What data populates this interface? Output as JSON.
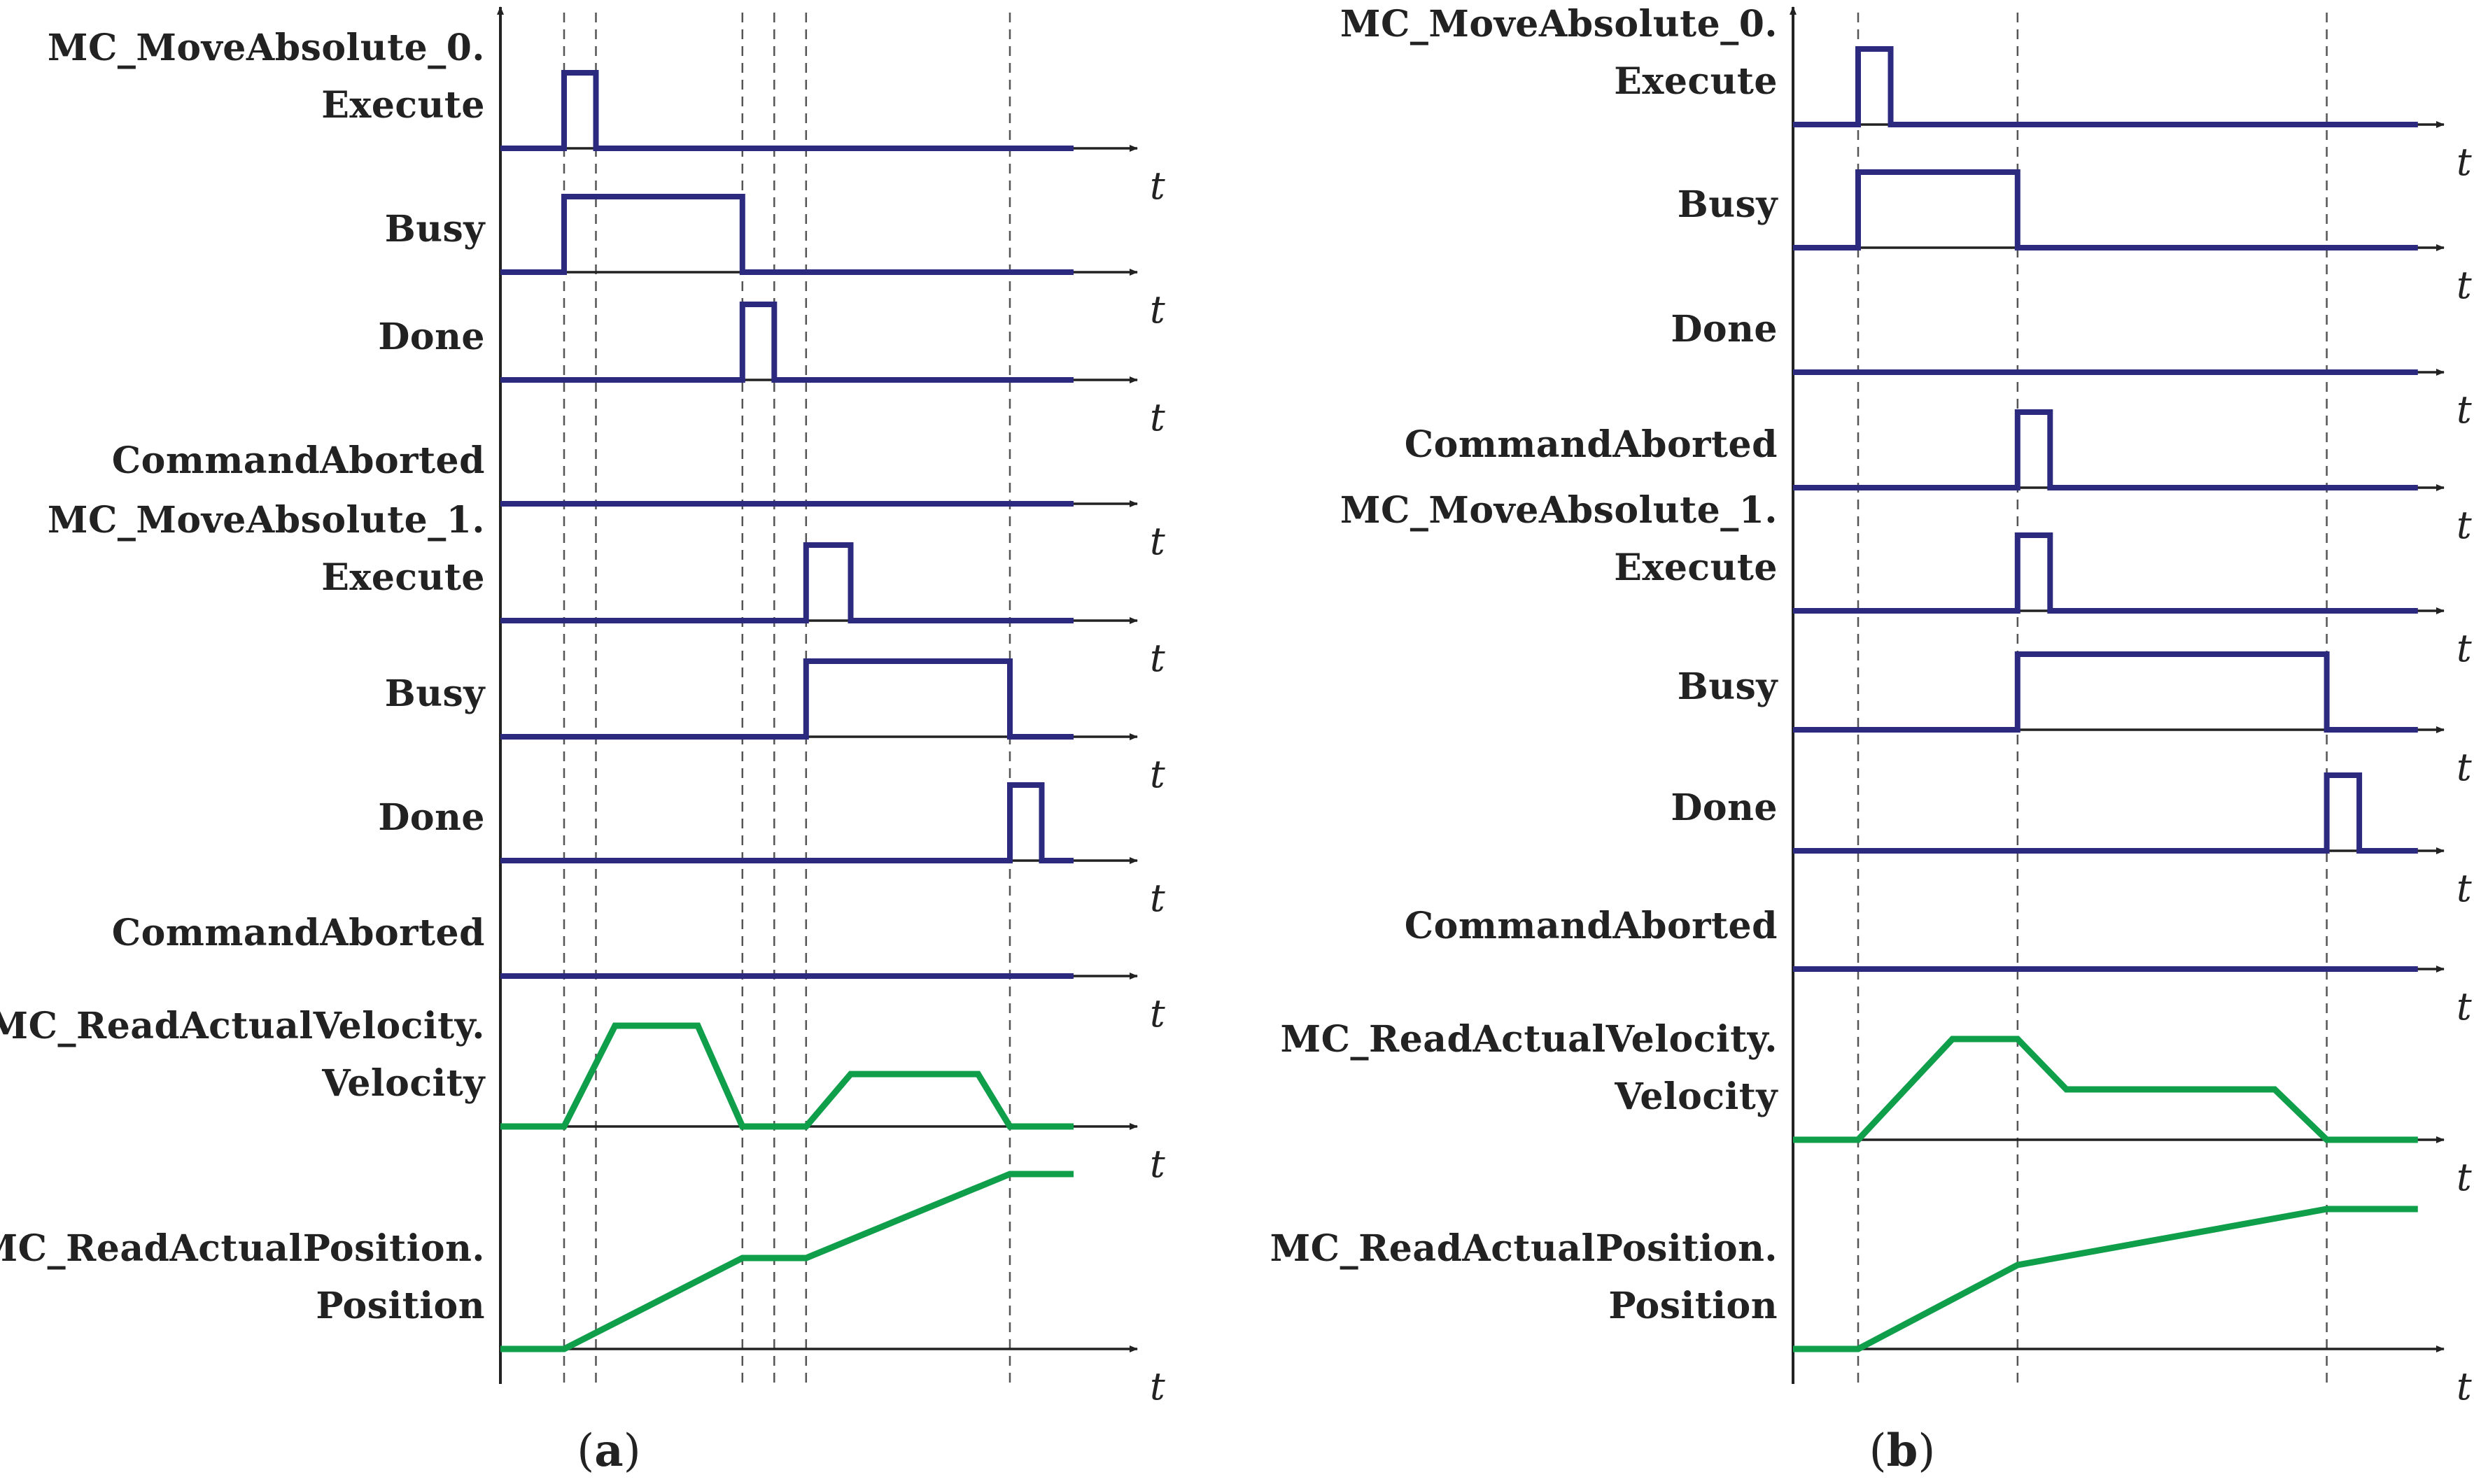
{
  "colors": {
    "digital": "#2b2a7e",
    "analog": "#0f9f4a",
    "axis": "#222222",
    "guide": "#555555"
  },
  "time_axis_symbol": "t",
  "panels": [
    {
      "caption_open": "(",
      "caption_letter": "a",
      "caption_close": ")",
      "signals": [
        {
          "label_lines": [
            "MC_MoveAbsolute_0.",
            "Execute"
          ],
          "kind": "digital",
          "points": [
            [
              0,
              0
            ],
            [
              0.1,
              0
            ],
            [
              0.1,
              1
            ],
            [
              0.15,
              1
            ],
            [
              0.15,
              0
            ],
            [
              0.9,
              0
            ]
          ]
        },
        {
          "label_lines": [
            "Busy"
          ],
          "kind": "digital",
          "points": [
            [
              0,
              0
            ],
            [
              0.1,
              0
            ],
            [
              0.1,
              1
            ],
            [
              0.38,
              1
            ],
            [
              0.38,
              0
            ],
            [
              0.9,
              0
            ]
          ]
        },
        {
          "label_lines": [
            "Done"
          ],
          "kind": "digital",
          "points": [
            [
              0,
              0
            ],
            [
              0.38,
              0
            ],
            [
              0.38,
              1
            ],
            [
              0.43,
              1
            ],
            [
              0.43,
              0
            ],
            [
              0.9,
              0
            ]
          ]
        },
        {
          "label_lines": [
            "CommandAborted"
          ],
          "kind": "digital",
          "points": [
            [
              0,
              0
            ],
            [
              0.9,
              0
            ]
          ]
        },
        {
          "label_lines": [
            "MC_MoveAbsolute_1.",
            "Execute"
          ],
          "kind": "digital",
          "points": [
            [
              0,
              0
            ],
            [
              0.48,
              0
            ],
            [
              0.48,
              1
            ],
            [
              0.55,
              1
            ],
            [
              0.55,
              0
            ],
            [
              0.9,
              0
            ]
          ]
        },
        {
          "label_lines": [
            "Busy"
          ],
          "kind": "digital",
          "points": [
            [
              0,
              0
            ],
            [
              0.48,
              0
            ],
            [
              0.48,
              1
            ],
            [
              0.8,
              1
            ],
            [
              0.8,
              0
            ],
            [
              0.9,
              0
            ]
          ]
        },
        {
          "label_lines": [
            "Done"
          ],
          "kind": "digital",
          "points": [
            [
              0,
              0
            ],
            [
              0.8,
              0
            ],
            [
              0.8,
              1
            ],
            [
              0.85,
              1
            ],
            [
              0.85,
              0
            ],
            [
              0.9,
              0
            ]
          ]
        },
        {
          "label_lines": [
            "CommandAborted"
          ],
          "kind": "digital",
          "points": [
            [
              0,
              0
            ],
            [
              0.9,
              0
            ]
          ]
        },
        {
          "label_lines": [
            "MC_ReadActualVelocity.",
            "Velocity"
          ],
          "kind": "analog",
          "points": [
            [
              0,
              0
            ],
            [
              0.1,
              0
            ],
            [
              0.18,
              1
            ],
            [
              0.31,
              1
            ],
            [
              0.38,
              0
            ],
            [
              0.48,
              0
            ],
            [
              0.55,
              0.52
            ],
            [
              0.75,
              0.52
            ],
            [
              0.8,
              0
            ],
            [
              0.9,
              0
            ]
          ]
        },
        {
          "label_lines": [
            "MC_ReadActualPosition.",
            "Position"
          ],
          "kind": "analog",
          "points": [
            [
              0,
              0
            ],
            [
              0.1,
              0
            ],
            [
              0.38,
              0.52
            ],
            [
              0.48,
              0.52
            ],
            [
              0.8,
              1
            ],
            [
              0.9,
              1
            ]
          ]
        }
      ]
    },
    {
      "caption_open": "(",
      "caption_letter": "b",
      "caption_close": ")",
      "signals": [
        {
          "label_lines": [
            "MC_MoveAbsolute_0.",
            "Execute"
          ],
          "kind": "digital",
          "points": [
            [
              0,
              0
            ],
            [
              0.1,
              0
            ],
            [
              0.1,
              1
            ],
            [
              0.15,
              1
            ],
            [
              0.15,
              0
            ],
            [
              0.96,
              0
            ]
          ]
        },
        {
          "label_lines": [
            "Busy"
          ],
          "kind": "digital",
          "points": [
            [
              0,
              0
            ],
            [
              0.1,
              0
            ],
            [
              0.1,
              1
            ],
            [
              0.345,
              1
            ],
            [
              0.345,
              0
            ],
            [
              0.96,
              0
            ]
          ]
        },
        {
          "label_lines": [
            "Done"
          ],
          "kind": "digital",
          "points": [
            [
              0,
              0
            ],
            [
              0.96,
              0
            ]
          ]
        },
        {
          "label_lines": [
            "CommandAborted"
          ],
          "kind": "digital",
          "points": [
            [
              0,
              0
            ],
            [
              0.345,
              0
            ],
            [
              0.345,
              1
            ],
            [
              0.395,
              1
            ],
            [
              0.395,
              0
            ],
            [
              0.96,
              0
            ]
          ]
        },
        {
          "label_lines": [
            "MC_MoveAbsolute_1.",
            "Execute"
          ],
          "kind": "digital",
          "points": [
            [
              0,
              0
            ],
            [
              0.345,
              0
            ],
            [
              0.345,
              1
            ],
            [
              0.395,
              1
            ],
            [
              0.395,
              0
            ],
            [
              0.96,
              0
            ]
          ]
        },
        {
          "label_lines": [
            "Busy"
          ],
          "kind": "digital",
          "points": [
            [
              0,
              0
            ],
            [
              0.345,
              0
            ],
            [
              0.345,
              1
            ],
            [
              0.82,
              1
            ],
            [
              0.82,
              0
            ],
            [
              0.96,
              0
            ]
          ]
        },
        {
          "label_lines": [
            "Done"
          ],
          "kind": "digital",
          "points": [
            [
              0,
              0
            ],
            [
              0.82,
              0
            ],
            [
              0.82,
              1
            ],
            [
              0.87,
              1
            ],
            [
              0.87,
              0
            ],
            [
              0.96,
              0
            ]
          ]
        },
        {
          "label_lines": [
            "CommandAborted"
          ],
          "kind": "digital",
          "points": [
            [
              0,
              0
            ],
            [
              0.96,
              0
            ]
          ]
        },
        {
          "label_lines": [
            "MC_ReadActualVelocity.",
            "Velocity"
          ],
          "kind": "analog",
          "points": [
            [
              0,
              0
            ],
            [
              0.1,
              0
            ],
            [
              0.245,
              1
            ],
            [
              0.345,
              1
            ],
            [
              0.42,
              0.5
            ],
            [
              0.74,
              0.5
            ],
            [
              0.82,
              0
            ],
            [
              0.96,
              0
            ]
          ]
        },
        {
          "label_lines": [
            "MC_ReadActualPosition.",
            "Position"
          ],
          "kind": "analog",
          "points": [
            [
              0,
              0
            ],
            [
              0.1,
              0
            ],
            [
              0.345,
              0.6
            ],
            [
              0.82,
              1
            ],
            [
              0.96,
              1
            ]
          ]
        }
      ]
    }
  ]
}
